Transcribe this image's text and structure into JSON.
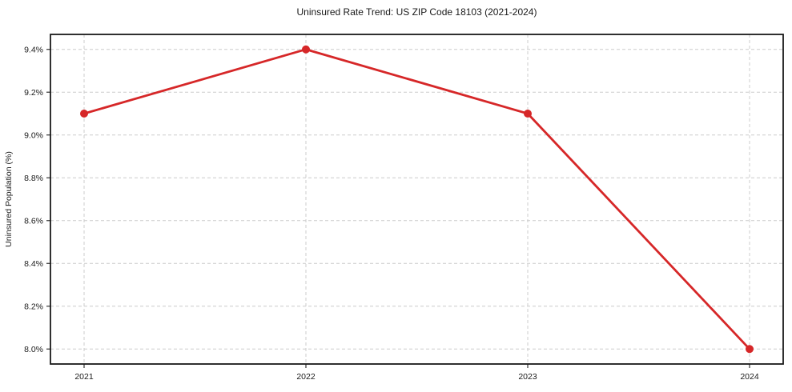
{
  "chart_data": {
    "type": "line",
    "title": "Uninsured Rate Trend: US ZIP Code 18103 (2021-2024)",
    "xlabel": "",
    "ylabel": "Uninsured Population (%)",
    "categories": [
      "2021",
      "2022",
      "2023",
      "2024"
    ],
    "values": [
      9.1,
      9.4,
      9.1,
      8.0
    ],
    "yticks": [
      8.0,
      8.2,
      8.4,
      8.6,
      8.8,
      9.0,
      9.2,
      9.4
    ],
    "ytick_labels": [
      "8.0%",
      "8.2%",
      "8.4%",
      "8.6%",
      "8.8%",
      "9.0%",
      "9.2%",
      "9.4%"
    ],
    "ylim": [
      7.93,
      9.47
    ],
    "grid": true,
    "grid_style": "dashed",
    "grid_color": "#cccccc",
    "legend": false,
    "line_color": "#d62728",
    "marker": "circle",
    "marker_color": "#d62728",
    "spine_color": "#1a1a1a",
    "tick_color": "#333333"
  }
}
